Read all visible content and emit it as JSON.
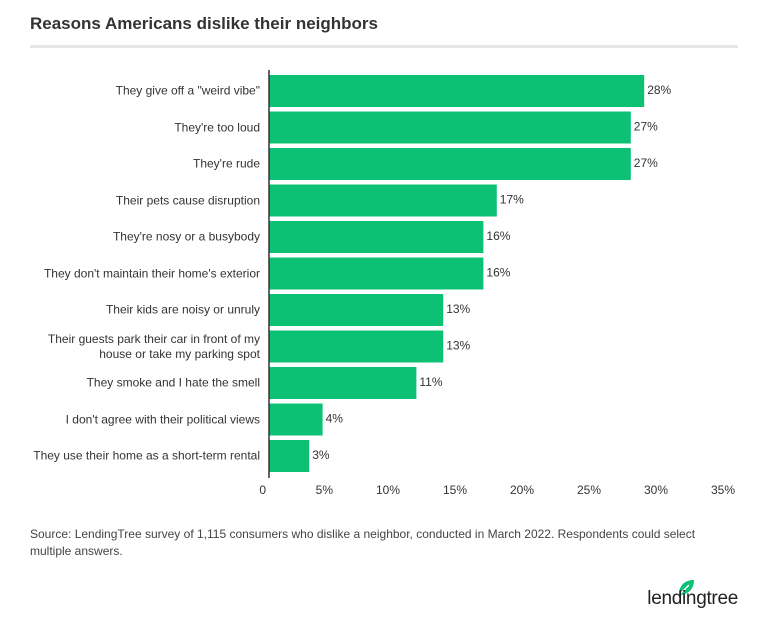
{
  "chart_data": {
    "type": "hbar",
    "title": "Reasons Americans dislike their neighbors",
    "categories": [
      "They give off a \"weird vibe\"",
      "They're too loud",
      "They're rude",
      "Their pets cause disruption",
      "They're nosy or a busybody",
      "They don't maintain their home's exterior",
      "Their kids are noisy or unruly",
      "Their guests park their car in front of my\nhouse or take my parking spot",
      "They smoke and I hate the smell",
      "I don't agree with their political views",
      "They use their home as a short-term rental"
    ],
    "values": [
      28,
      27,
      27,
      17,
      16,
      16,
      13,
      13,
      11,
      4,
      3
    ],
    "value_labels": [
      "28%",
      "27%",
      "27%",
      "17%",
      "16%",
      "16%",
      "13%",
      "13%",
      "11%",
      "4%",
      "3%"
    ],
    "color": "#0cc174",
    "xlim": [
      0,
      35
    ],
    "xticks": [
      0,
      {
        "value": 5,
        "label": "5%"
      },
      {
        "value": 10,
        "label": "10%"
      },
      {
        "value": 15,
        "label": "15%"
      },
      {
        "value": 20,
        "label": "20%"
      },
      {
        "value": 25,
        "label": "25%"
      },
      {
        "value": 30,
        "label": "30%"
      },
      {
        "value": 35,
        "label": "35%"
      }
    ],
    "source": "Source: LendingTree survey of 1,115 consumers who dislike a neighbor, conducted in March 2022. Respondents could select multiple answers.",
    "logo": "lendingtree"
  }
}
